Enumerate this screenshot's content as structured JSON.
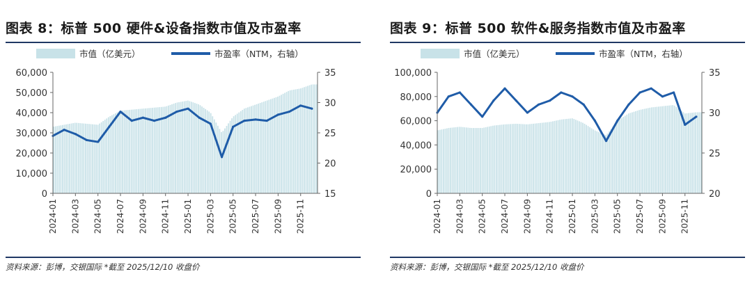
{
  "chart_data": [
    {
      "type": "bar+line",
      "title": "图表 8：标普 500 硬件&设备指数市值及市盈率",
      "source": "资料来源：彭博，交银国际   *截至 2025/12/10 收盘价",
      "legend": [
        "市值（亿美元）",
        "市盈率（NTM，右轴）"
      ],
      "legend_position": "top",
      "colors": {
        "bars": "#c8e2e8",
        "line": "#1f5ca8"
      },
      "x_ticks": [
        "2024-01",
        "2024-03",
        "2024-05",
        "2024-07",
        "2024-09",
        "2024-11",
        "2025-01",
        "2025-03",
        "2025-05",
        "2025-07",
        "2025-09",
        "2025-11"
      ],
      "y_left": {
        "range": [
          0,
          60000
        ],
        "ticks": [
          "0",
          "10,000",
          "20,000",
          "30,000",
          "40,000",
          "50,000",
          "60,000"
        ]
      },
      "y_right": {
        "range": [
          15,
          35
        ],
        "ticks": [
          "15",
          "20",
          "25",
          "30",
          "35"
        ]
      },
      "series": [
        {
          "name": "市值（亿美元）",
          "kind": "bar",
          "x": [
            "2024-01",
            "2024-02",
            "2024-03",
            "2024-04",
            "2024-05",
            "2024-06",
            "2024-07",
            "2024-08",
            "2024-09",
            "2024-10",
            "2024-11",
            "2024-12",
            "2025-01",
            "2025-02",
            "2025-03",
            "2025-04",
            "2025-05",
            "2025-06",
            "2025-07",
            "2025-08",
            "2025-09",
            "2025-10",
            "2025-11",
            "2025-12"
          ],
          "y": [
            33000,
            34000,
            35000,
            34500,
            34000,
            38000,
            41000,
            41500,
            42000,
            42500,
            43000,
            45000,
            46000,
            44000,
            40000,
            30000,
            38000,
            42000,
            44000,
            46000,
            48000,
            51000,
            52000,
            54000
          ]
        },
        {
          "name": "市盈率（NTM，右轴）",
          "kind": "line",
          "x": [
            "2024-01",
            "2024-02",
            "2024-03",
            "2024-04",
            "2024-05",
            "2024-06",
            "2024-07",
            "2024-08",
            "2024-09",
            "2024-10",
            "2024-11",
            "2024-12",
            "2025-01",
            "2025-02",
            "2025-03",
            "2025-04",
            "2025-05",
            "2025-06",
            "2025-07",
            "2025-08",
            "2025-09",
            "2025-10",
            "2025-11",
            "2025-12"
          ],
          "y": [
            24.5,
            25.5,
            24.8,
            23.8,
            23.5,
            26,
            28.5,
            27,
            27.5,
            27,
            27.5,
            28.5,
            29,
            27.5,
            26.5,
            21,
            26,
            27,
            27.2,
            27,
            28,
            28.5,
            29.5,
            29
          ]
        }
      ]
    },
    {
      "type": "bar+line",
      "title": "图表 9：标普 500 软件&服务指数市值及市盈率",
      "source": "资料来源：彭博，交银国际   *截至 2025/12/10 收盘价",
      "legend": [
        "市值（亿美元）",
        "市盈率（NTM，右轴）"
      ],
      "legend_position": "top",
      "colors": {
        "bars": "#c8e2e8",
        "line": "#1f5ca8"
      },
      "x_ticks": [
        "2024-01",
        "2024-03",
        "2024-05",
        "2024-07",
        "2024-09",
        "2024-11",
        "2025-01",
        "2025-03",
        "2025-05",
        "2025-07",
        "2025-09",
        "2025-11"
      ],
      "y_left": {
        "range": [
          0,
          100000
        ],
        "ticks": [
          "0",
          "20,000",
          "40,000",
          "60,000",
          "80,000",
          "100,000"
        ]
      },
      "y_right": {
        "range": [
          20,
          35
        ],
        "ticks": [
          "20",
          "25",
          "30",
          "35"
        ]
      },
      "series": [
        {
          "name": "市值（亿美元）",
          "kind": "bar",
          "x": [
            "2024-01",
            "2024-02",
            "2024-03",
            "2024-04",
            "2024-05",
            "2024-06",
            "2024-07",
            "2024-08",
            "2024-09",
            "2024-10",
            "2024-11",
            "2024-12",
            "2025-01",
            "2025-02",
            "2025-03",
            "2025-04",
            "2025-05",
            "2025-06",
            "2025-07",
            "2025-08",
            "2025-09",
            "2025-10",
            "2025-11",
            "2025-12"
          ],
          "y": [
            52000,
            54000,
            55000,
            54000,
            54000,
            56000,
            57000,
            57500,
            57000,
            58000,
            59000,
            61000,
            62000,
            58000,
            52000,
            48000,
            60000,
            66000,
            69000,
            71000,
            72000,
            73000,
            66000,
            67000
          ]
        },
        {
          "name": "市盈率（NTM，右轴）",
          "kind": "line",
          "x": [
            "2024-01",
            "2024-02",
            "2024-03",
            "2024-04",
            "2024-05",
            "2024-06",
            "2024-07",
            "2024-08",
            "2024-09",
            "2024-10",
            "2024-11",
            "2024-12",
            "2025-01",
            "2025-02",
            "2025-03",
            "2025-04",
            "2025-05",
            "2025-06",
            "2025-07",
            "2025-08",
            "2025-09",
            "2025-10",
            "2025-11",
            "2025-12"
          ],
          "y": [
            30,
            32,
            32.5,
            31,
            29.5,
            31.5,
            33,
            31.5,
            30,
            31,
            31.5,
            32.5,
            32,
            31,
            29,
            26.5,
            29,
            31,
            32.5,
            33,
            32,
            32.5,
            28.5,
            29.5
          ]
        }
      ]
    }
  ]
}
